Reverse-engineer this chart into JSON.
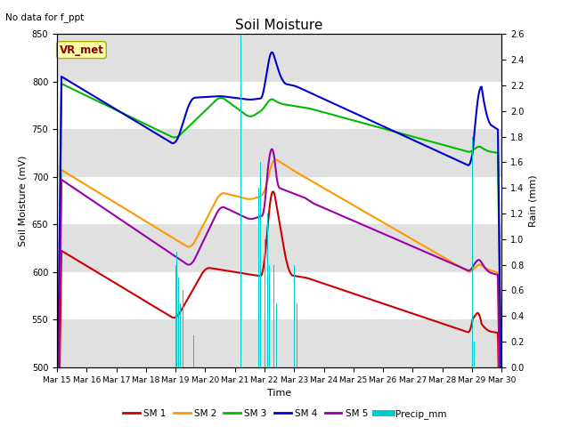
{
  "title": "Soil Moisture",
  "top_left_text": "No data for f_ppt",
  "xlabel": "Time",
  "ylabel_left": "Soil Moisture (mV)",
  "ylabel_right": "Rain (mm)",
  "ylim_left": [
    500,
    850
  ],
  "ylim_right": [
    0.0,
    2.6
  ],
  "yticks_left": [
    500,
    550,
    600,
    650,
    700,
    750,
    800,
    850
  ],
  "yticks_right": [
    0.0,
    0.2,
    0.4,
    0.6,
    0.8,
    1.0,
    1.2,
    1.4,
    1.6,
    1.8,
    2.0,
    2.2,
    2.4,
    2.6
  ],
  "xtick_labels": [
    "Mar 15",
    "Mar 16",
    "Mar 17",
    "Mar 18",
    "Mar 19",
    "Mar 20",
    "Mar 21",
    "Mar 22",
    "Mar 23",
    "Mar 24",
    "Mar 25",
    "Mar 26",
    "Mar 27",
    "Mar 28",
    "Mar 29",
    "Mar 30"
  ],
  "legend_labels": [
    "SM 1",
    "SM 2",
    "SM 3",
    "SM 4",
    "SM 5",
    "Precip_mm"
  ],
  "line_colors": [
    "#cc0000",
    "#ff9900",
    "#00bb00",
    "#0000cc",
    "#9900aa",
    "#00cccc"
  ],
  "vr_met_box_facecolor": "#ffffaa",
  "vr_met_box_edgecolor": "#aaaa00",
  "vr_met_text_color": "#880000",
  "background_color": "#ffffff",
  "grid_band_color": "#e0e0e0",
  "n_points": 600
}
